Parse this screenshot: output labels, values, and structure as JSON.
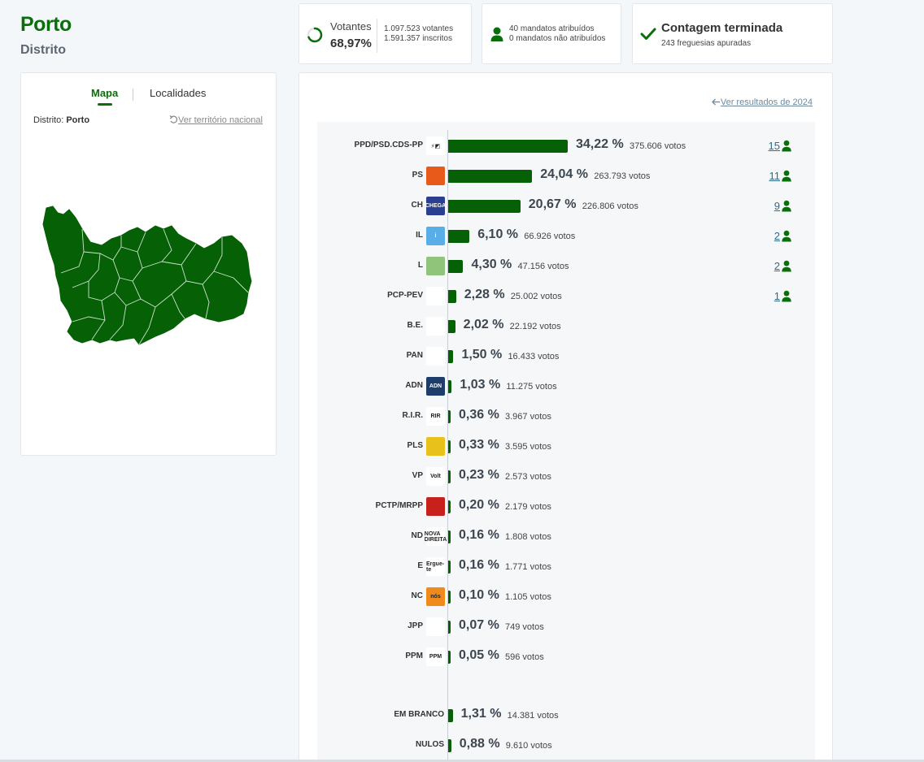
{
  "header": {
    "title": "Porto",
    "subtitle": "Distrito"
  },
  "votantes": {
    "label": "Votantes",
    "pct": "68,97%",
    "votantes_line": "1.097.523 votantes",
    "inscritos_line": "1.591.357 inscritos",
    "progress": 0.6897
  },
  "mandatos": {
    "atribuidos": "40 mandatos atribuídos",
    "nao_atribuidos": "0 mandatos não atribuídos"
  },
  "contagem": {
    "title": "Contagem terminada",
    "subtitle": "243 freguesias apuradas"
  },
  "map_panel": {
    "tab_mapa": "Mapa",
    "tab_localidades": "Localidades",
    "distrito_label": "Distrito:",
    "distrito_value": "Porto",
    "ver_nacional": "Ver território nacional"
  },
  "results": {
    "ver_2024": "Ver resultados de 2024",
    "parties": [
      {
        "name": "PPD/PSD.CDS-PP",
        "pct": "34,22 %",
        "votes": "375.606 votos",
        "seats": "15",
        "value": 34.22,
        "logo_color": "#ffffff",
        "logo_text": "⚡◩"
      },
      {
        "name": "PS",
        "pct": "24,04 %",
        "votes": "263.793 votos",
        "seats": "11",
        "value": 24.04,
        "logo_color": "#e85a1a",
        "logo_text": ""
      },
      {
        "name": "CH",
        "pct": "20,67 %",
        "votes": "226.806 votos",
        "seats": "9",
        "value": 20.67,
        "logo_color": "#2a3f8f",
        "logo_text": "CHEGA"
      },
      {
        "name": "IL",
        "pct": "6,10 %",
        "votes": "66.926 votos",
        "seats": "2",
        "value": 6.1,
        "logo_color": "#5aaee8",
        "logo_text": "i"
      },
      {
        "name": "L",
        "pct": "4,30 %",
        "votes": "47.156 votos",
        "seats": "2",
        "value": 4.3,
        "logo_color": "#8fc47a",
        "logo_text": ""
      },
      {
        "name": "PCP-PEV",
        "pct": "2,28 %",
        "votes": "25.002 votos",
        "seats": "1",
        "value": 2.28,
        "logo_color": "#ffffff",
        "logo_text": ""
      },
      {
        "name": "B.E.",
        "pct": "2,02 %",
        "votes": "22.192 votos",
        "seats": "",
        "value": 2.02,
        "logo_color": "#ffffff",
        "logo_text": ""
      },
      {
        "name": "PAN",
        "pct": "1,50 %",
        "votes": "16.433 votos",
        "seats": "",
        "value": 1.5,
        "logo_color": "#ffffff",
        "logo_text": ""
      },
      {
        "name": "ADN",
        "pct": "1,03 %",
        "votes": "11.275 votos",
        "seats": "",
        "value": 1.03,
        "logo_color": "#1e3d6b",
        "logo_text": "ADN"
      },
      {
        "name": "R.I.R.",
        "pct": "0,36 %",
        "votes": "3.967 votos",
        "seats": "",
        "value": 0.36,
        "logo_color": "#ffffff",
        "logo_text": "RIR"
      },
      {
        "name": "PLS",
        "pct": "0,33 %",
        "votes": "3.595 votos",
        "seats": "",
        "value": 0.33,
        "logo_color": "#e8c21a",
        "logo_text": ""
      },
      {
        "name": "VP",
        "pct": "0,23 %",
        "votes": "2.573 votos",
        "seats": "",
        "value": 0.23,
        "logo_color": "#ffffff",
        "logo_text": "Volt"
      },
      {
        "name": "PCTP/MRPP",
        "pct": "0,20 %",
        "votes": "2.179 votos",
        "seats": "",
        "value": 0.2,
        "logo_color": "#c8201a",
        "logo_text": ""
      },
      {
        "name": "ND",
        "pct": "0,16 %",
        "votes": "1.808 votos",
        "seats": "",
        "value": 0.16,
        "logo_color": "#ffffff",
        "logo_text": "NOVA DIREITA"
      },
      {
        "name": "E",
        "pct": "0,16 %",
        "votes": "1.771 votos",
        "seats": "",
        "value": 0.16,
        "logo_color": "#ffffff",
        "logo_text": "Ergue-te"
      },
      {
        "name": "NC",
        "pct": "0,10 %",
        "votes": "1.105 votos",
        "seats": "",
        "value": 0.1,
        "logo_color": "#f08a1a",
        "logo_text": "nós"
      },
      {
        "name": "JPP",
        "pct": "0,07 %",
        "votes": "749 votos",
        "seats": "",
        "value": 0.07,
        "logo_color": "#ffffff",
        "logo_text": ""
      },
      {
        "name": "PPM",
        "pct": "0,05 %",
        "votes": "596 votos",
        "seats": "",
        "value": 0.05,
        "logo_color": "#ffffff",
        "logo_text": "PPM"
      }
    ],
    "blank": {
      "name": "EM BRANCO",
      "pct": "1,31 %",
      "votes": "14.381 votos",
      "value": 1.31
    },
    "null": {
      "name": "NULOS",
      "pct": "0,88 %",
      "votes": "9.610 votos",
      "value": 0.88
    }
  },
  "colors": {
    "brand_green": "#0a6e0a",
    "bar_green": "#066006",
    "link_blue": "#2f6b8a"
  },
  "icons": [
    "progress-ring-icon",
    "person-icon",
    "check-icon",
    "undo-icon",
    "arrow-left-icon"
  ]
}
